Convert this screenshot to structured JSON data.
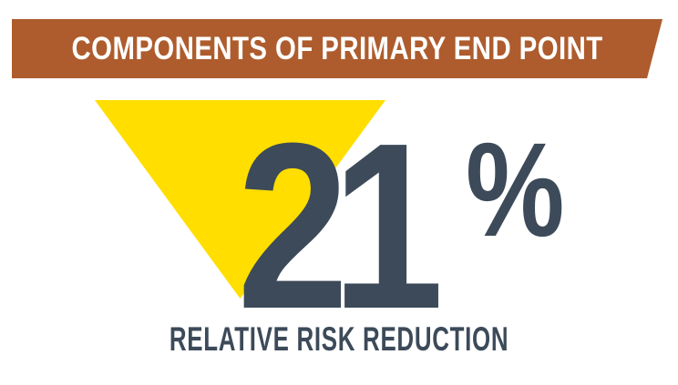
{
  "colors": {
    "page_bg": "#ffffff",
    "banner_bg": "#AE5C2D",
    "banner_text_color": "#ffffff",
    "triangle_fill": "#FFDE00",
    "stat_color": "#3C4A59"
  },
  "banner": {
    "title": "COMPONENTS OF PRIMARY END POINT"
  },
  "stat": {
    "value": "21",
    "unit": "%",
    "label": "RELATIVE RISK REDUCTION"
  },
  "icons": {
    "down_triangle": "down-triangle-icon"
  }
}
